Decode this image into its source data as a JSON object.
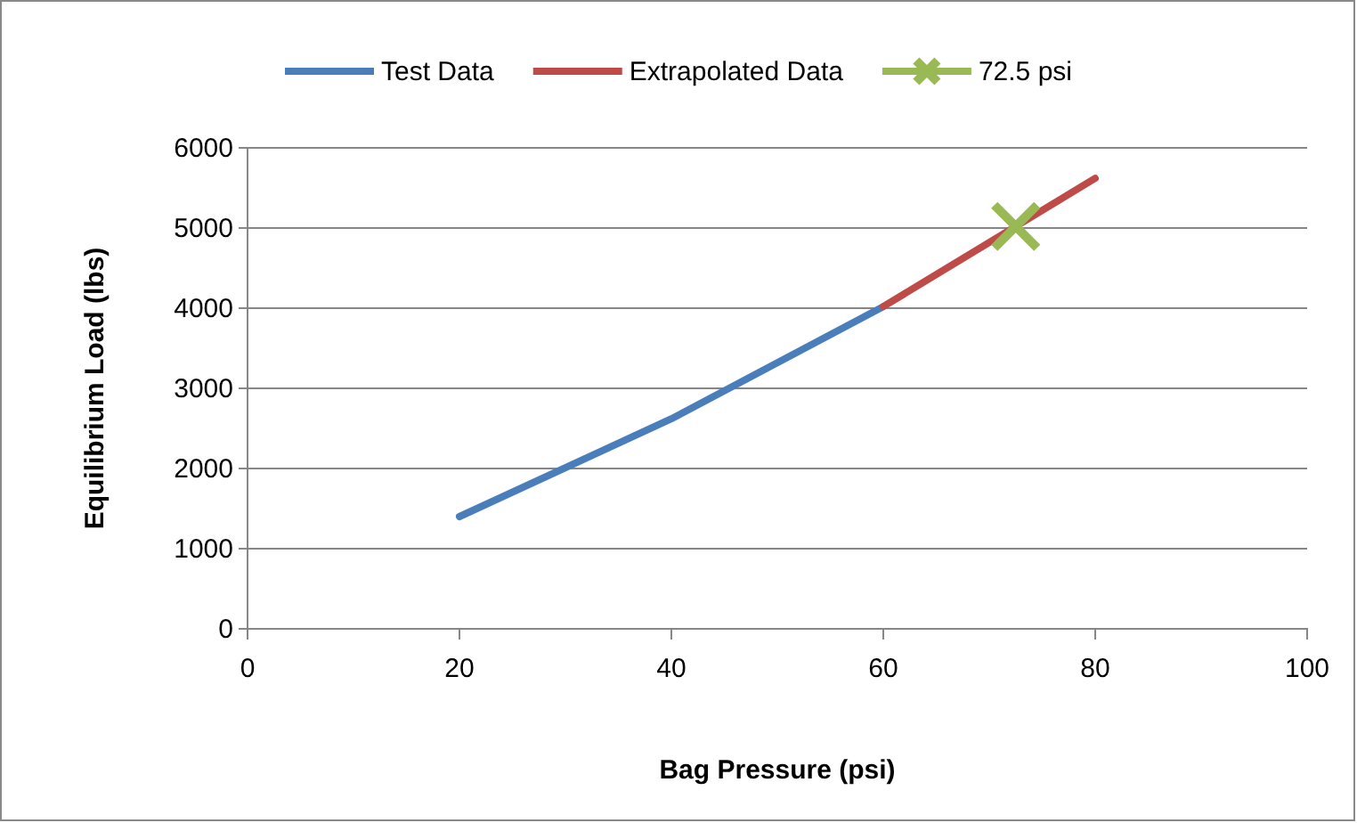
{
  "chart_data": {
    "type": "line",
    "xlabel": "Bag Pressure (psi)",
    "ylabel": "Equilibrium Load (lbs)",
    "xlim": [
      0,
      100
    ],
    "xticks": [
      0,
      20,
      40,
      60,
      80,
      100
    ],
    "ylim": [
      0,
      6000
    ],
    "yticks": [
      0,
      1000,
      2000,
      3000,
      4000,
      5000,
      6000
    ],
    "grid": "y",
    "legend": "top",
    "line_style": "solid",
    "series": [
      {
        "name": "Test Data",
        "color": "#4a7ebb",
        "x": [
          20,
          40,
          60
        ],
        "values": [
          1400,
          2620,
          4020
        ]
      },
      {
        "name": "Extrapolated Data",
        "color": "#be4b48",
        "x": [
          60,
          80
        ],
        "values": [
          4020,
          5620
        ]
      },
      {
        "name": "72.5 psi",
        "type": "scatter",
        "marker": "cross",
        "color": "#98b954",
        "x": [
          72.5
        ],
        "values": [
          5020
        ]
      }
    ]
  }
}
